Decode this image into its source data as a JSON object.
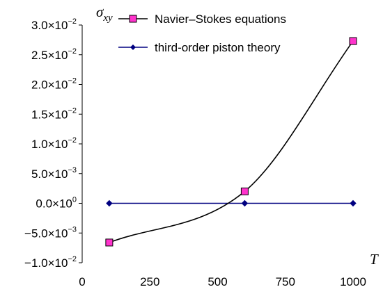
{
  "chart_data": {
    "type": "line",
    "title": "",
    "ylabel": "σxy",
    "xlabel": "T",
    "xlim": [
      0,
      1000
    ],
    "ylim": [
      -0.01,
      0.03
    ],
    "x_ticks": [
      {
        "value": 0,
        "label": "0"
      },
      {
        "value": 250,
        "label": "250"
      },
      {
        "value": 500,
        "label": "500"
      },
      {
        "value": 750,
        "label": "750"
      },
      {
        "value": 1000,
        "label": "1000"
      }
    ],
    "y_ticks": [
      {
        "value": 0.03,
        "mantissa": "3.0×10",
        "exp": "−2"
      },
      {
        "value": 0.025,
        "mantissa": "2.5×10",
        "exp": "−2"
      },
      {
        "value": 0.02,
        "mantissa": "2.0×10",
        "exp": "−2"
      },
      {
        "value": 0.015,
        "mantissa": "1.5×10",
        "exp": "−2"
      },
      {
        "value": 0.01,
        "mantissa": "1.0×10",
        "exp": "−2"
      },
      {
        "value": 0.005,
        "mantissa": "5.0×10",
        "exp": "−3"
      },
      {
        "value": 0.0,
        "mantissa": "0.0×10",
        "exp": "0"
      },
      {
        "value": -0.005,
        "mantissa": "−5.0×10",
        "exp": "−3"
      },
      {
        "value": -0.01,
        "mantissa": "−1.0×10",
        "exp": "−2"
      }
    ],
    "legend_position": "top-right",
    "series": [
      {
        "name": "Navier–Stokes equations",
        "marker": "square",
        "color": "#000000",
        "marker_color": "#ff33cc",
        "x": [
          100,
          600,
          1000
        ],
        "y": [
          -0.0066,
          0.002,
          0.0273
        ]
      },
      {
        "name": "third-order piston theory",
        "marker": "diamond",
        "color": "#000080",
        "marker_color": "#000080",
        "x": [
          100,
          600,
          1000
        ],
        "y": [
          0.0,
          0.0,
          0.0
        ]
      }
    ]
  }
}
